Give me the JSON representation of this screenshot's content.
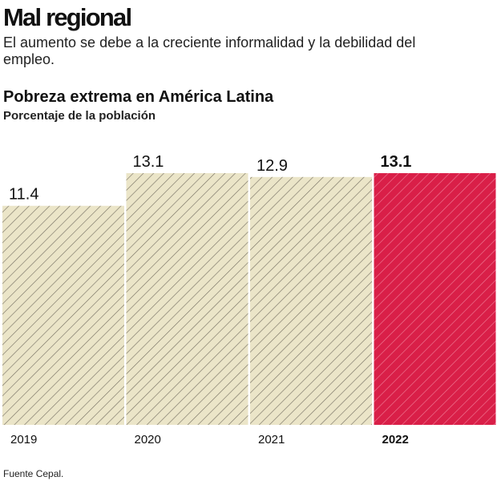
{
  "header": {
    "title": "Mal regional",
    "subtitle": "El aumento se debe a la creciente informalidad y la debilidad del empleo."
  },
  "source": "Fuente Cepal.",
  "chart_data": {
    "type": "bar",
    "title": "Pobreza extrema en América Latina",
    "subtitle": "Porcentaje de la población",
    "categories": [
      "2019",
      "2020",
      "2021",
      "2022"
    ],
    "values": [
      11.4,
      13.1,
      12.9,
      13.1
    ],
    "highlight_index": 3,
    "colors": {
      "default": "#ebe5c8",
      "default_stripe": "#7a7466",
      "highlight": "#d91f48",
      "highlight_stripe": "#f07a94"
    },
    "ylim": [
      0,
      13.1
    ],
    "grid": false
  }
}
